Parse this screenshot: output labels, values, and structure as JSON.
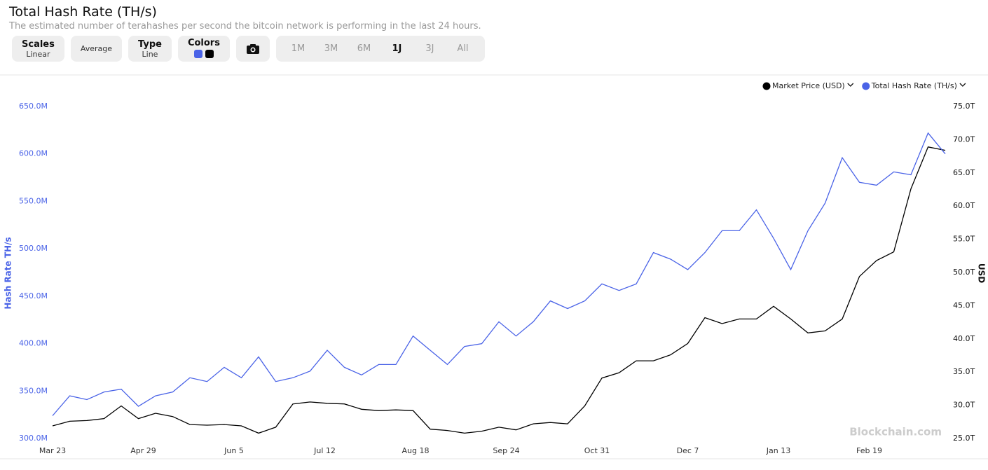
{
  "header": {
    "title": "Total Hash Rate (TH/s)",
    "subtitle": "The estimated number of terahashes per second the bitcoin network is performing in the last 24 hours."
  },
  "toolbar": {
    "scales": {
      "label": "Scales",
      "value": "Linear"
    },
    "average": "Average",
    "type": {
      "label": "Type",
      "value": "Line"
    },
    "colors": "Colors",
    "ranges": [
      "1M",
      "3M",
      "6M",
      "1J",
      "3J",
      "All"
    ],
    "active_range": 3
  },
  "watermark": "Blockchain.com",
  "chart_data": {
    "type": "line",
    "ylabel": "Hash Rate TH/s",
    "y2label": "USD",
    "x": [
      0,
      7,
      14,
      21,
      28,
      35,
      42,
      49,
      56,
      63,
      70,
      77,
      84,
      91,
      98,
      105,
      112,
      119,
      126,
      133,
      140,
      147,
      154,
      161,
      168,
      175,
      182,
      189,
      196,
      203,
      210,
      217,
      224,
      231,
      238,
      245,
      252,
      259,
      266,
      273,
      280,
      287,
      294,
      301,
      308,
      315,
      322,
      329,
      336,
      343,
      350,
      357,
      364
    ],
    "xlim": [
      0,
      364
    ],
    "xticks": [
      {
        "value": 0,
        "label": "Mar 23"
      },
      {
        "value": 37,
        "label": "Apr 29"
      },
      {
        "value": 74,
        "label": "Jun 5"
      },
      {
        "value": 111,
        "label": "Jul 12"
      },
      {
        "value": 148,
        "label": "Aug 18"
      },
      {
        "value": 185,
        "label": "Sep 24"
      },
      {
        "value": 222,
        "label": "Oct 31"
      },
      {
        "value": 259,
        "label": "Dec 7"
      },
      {
        "value": 296,
        "label": "Jan 13"
      },
      {
        "value": 333,
        "label": "Feb 19"
      }
    ],
    "ylim": [
      300000000,
      650000000
    ],
    "yticks": [
      {
        "value": 300000000,
        "label": "300.0M"
      },
      {
        "value": 350000000,
        "label": "350.0M"
      },
      {
        "value": 400000000,
        "label": "400.0M"
      },
      {
        "value": 450000000,
        "label": "450.0M"
      },
      {
        "value": 500000000,
        "label": "500.0M"
      },
      {
        "value": 550000000,
        "label": "550.0M"
      },
      {
        "value": 600000000,
        "label": "600.0M"
      },
      {
        "value": 650000000,
        "label": "650.0M"
      }
    ],
    "y2lim": [
      25000000000000,
      75000000000000
    ],
    "y2ticks": [
      {
        "value": 25000000000000,
        "label": "25.0T"
      },
      {
        "value": 30000000000000,
        "label": "30.0T"
      },
      {
        "value": 35000000000000,
        "label": "35.0T"
      },
      {
        "value": 40000000000000,
        "label": "40.0T"
      },
      {
        "value": 45000000000000,
        "label": "45.0T"
      },
      {
        "value": 50000000000000,
        "label": "50.0T"
      },
      {
        "value": 55000000000000,
        "label": "55.0T"
      },
      {
        "value": 60000000000000,
        "label": "60.0T"
      },
      {
        "value": 65000000000000,
        "label": "65.0T"
      },
      {
        "value": 70000000000000,
        "label": "70.0T"
      },
      {
        "value": 75000000000000,
        "label": "75.0T"
      }
    ],
    "series": [
      {
        "name": "Market Price (USD)",
        "color": "#000000",
        "axis": "y2",
        "values": [
          26900000000000.0,
          27600000000000.0,
          27700000000000.0,
          28000000000000.0,
          29900000000000.0,
          28000000000000.0,
          28800000000000.0,
          28300000000000.0,
          27100000000000.0,
          27000000000000.0,
          27100000000000.0,
          26900000000000.0,
          25800000000000.0,
          26700000000000.0,
          30200000000000.0,
          30500000000000.0,
          30300000000000.0,
          30200000000000.0,
          29400000000000.0,
          29200000000000.0,
          29300000000000.0,
          29200000000000.0,
          26400000000000.0,
          26200000000000.0,
          25800000000000.0,
          26100000000000.0,
          26700000000000.0,
          26300000000000.0,
          27200000000000.0,
          27400000000000.0,
          27200000000000.0,
          29900000000000.0,
          34100000000000.0,
          34900000000000.0,
          36700000000000.0,
          36700000000000.0,
          37600000000000.0,
          39300000000000.0,
          43200000000000.0,
          42300000000000.0,
          43000000000000.0,
          43000000000000.0,
          44900000000000.0,
          43000000000000.0,
          40900000000000.0,
          41200000000000.0,
          43000000000000.0,
          49400000000000.0,
          51800000000000.0,
          53100000000000.0,
          62600000000000.0,
          68900000000000.0,
          68400000000000.0
        ]
      },
      {
        "name": "Total Hash Rate (TH/s)",
        "color": "#4a63e7",
        "values": [
          324000000,
          345000000,
          341000000,
          349000000,
          352000000,
          334000000,
          345000000,
          349000000,
          364000000,
          360000000,
          375000000,
          364000000,
          386000000,
          360000000,
          364000000,
          371000000,
          393000000,
          375000000,
          367000000,
          378000000,
          378000000,
          408000000,
          393000000,
          378000000,
          397000000,
          400000000,
          423000000,
          408000000,
          423000000,
          445000000,
          437000000,
          445000000,
          463000000,
          456000000,
          463000000,
          496000000,
          489000000,
          478000000,
          496000000,
          519000000,
          519000000,
          541000000,
          511000000,
          478000000,
          519000000,
          548000000,
          596000000,
          570000000,
          567000000,
          581000000,
          578000000,
          622000000,
          600000000
        ]
      }
    ]
  }
}
